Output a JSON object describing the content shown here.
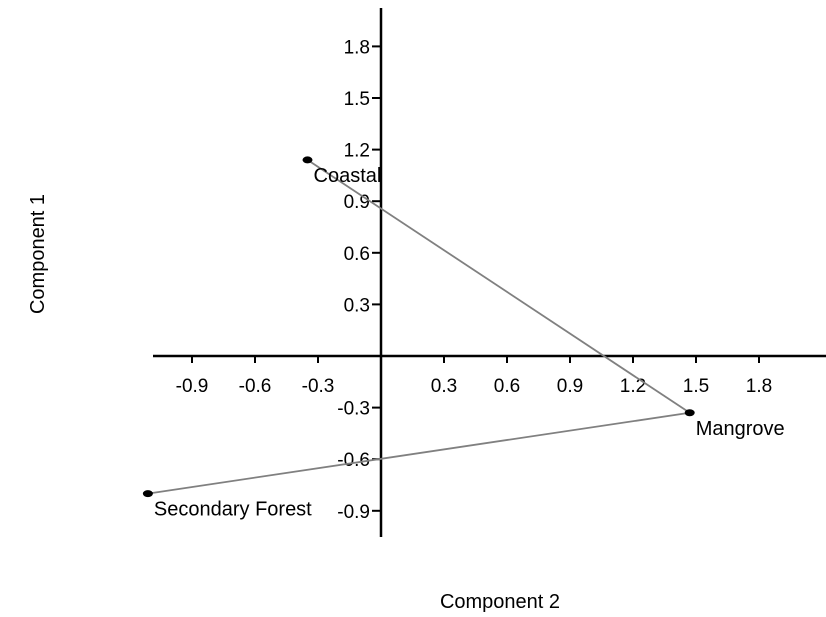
{
  "chart_data": {
    "type": "scatter",
    "title": "",
    "xlabel": "Component 2",
    "ylabel": "Component 1",
    "xlim": [
      -1.17,
      2.47
    ],
    "ylim": [
      -0.98,
      2.03
    ],
    "x_ticks": [
      -0.9,
      -0.6,
      -0.3,
      0.3,
      0.6,
      0.9,
      1.2,
      1.5,
      1.8
    ],
    "y_ticks": [
      -0.9,
      -0.6,
      -0.3,
      0.3,
      0.6,
      0.9,
      1.2,
      1.5,
      1.8
    ],
    "x_tick_labels": [
      "-0.9",
      "-0.6",
      "-0.3",
      "0.3",
      "0.6",
      "0.9",
      "1.2",
      "1.5",
      "1.8"
    ],
    "y_tick_labels": [
      "-0.9",
      "-0.6",
      "-0.3",
      "0.3",
      "0.6",
      "0.9",
      "1.2",
      "1.5",
      "1.8"
    ],
    "points": [
      {
        "label": "Coastal",
        "x": -0.35,
        "y": 1.14
      },
      {
        "label": "Mangrove",
        "x": 1.47,
        "y": -0.33
      },
      {
        "label": "Secondary Forest",
        "x": -1.11,
        "y": -0.8
      }
    ],
    "connected": true,
    "grid": false,
    "legend": "none",
    "colors": {
      "points": "#000000",
      "connector": "#808080",
      "axes": "#000000"
    }
  }
}
